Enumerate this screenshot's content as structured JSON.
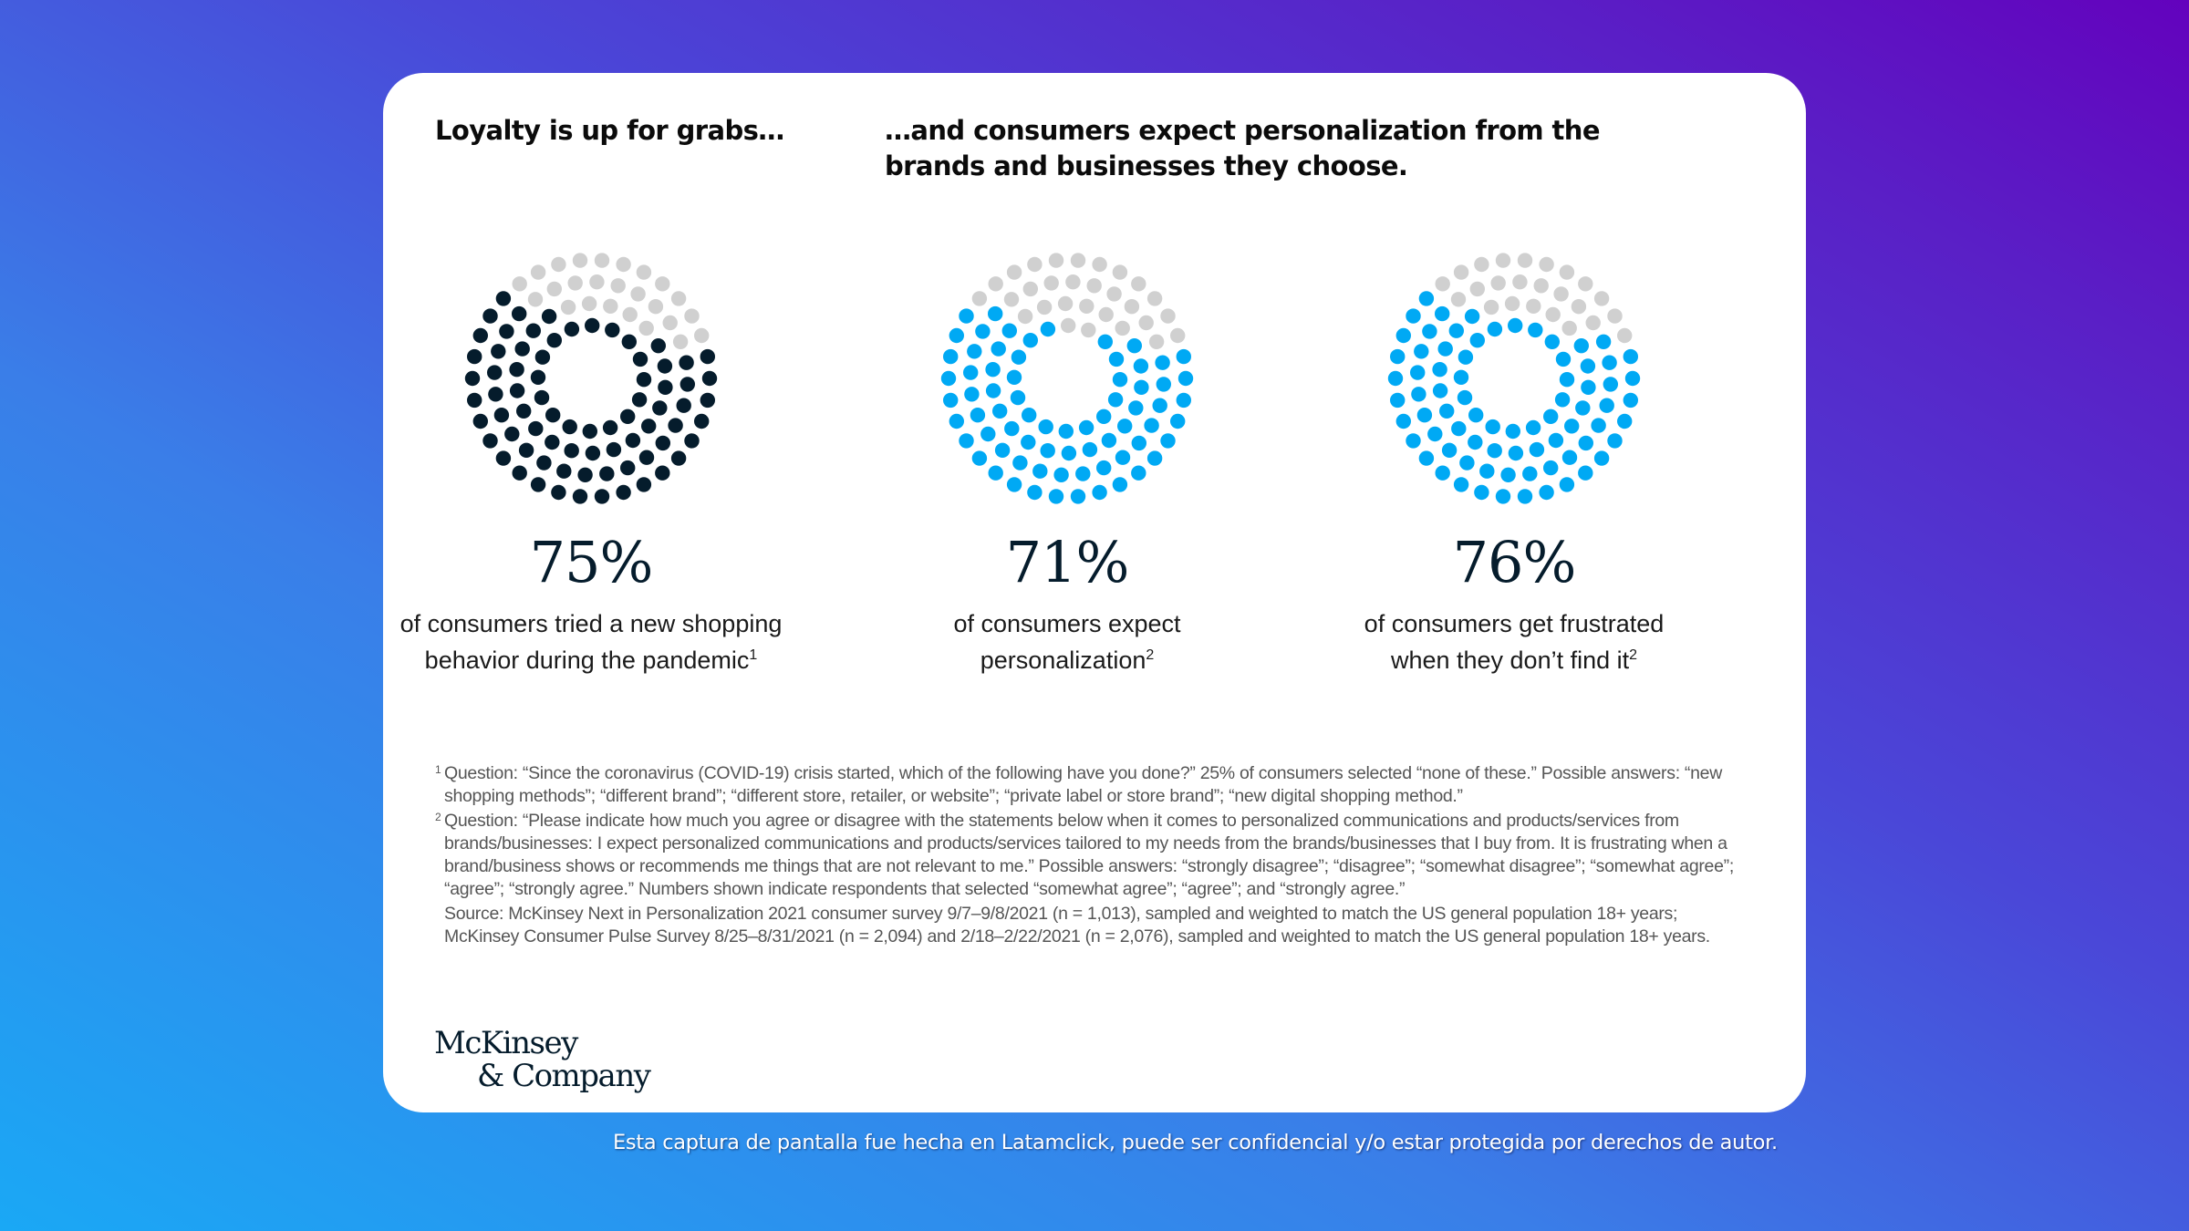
{
  "headline_left": "Loyalty is up for grabs…",
  "headline_right": "…and consumers expect personalization from the brands and businesses they choose.",
  "colors": {
    "background_start": "#1aa8f5",
    "background_end": "#6302bd",
    "dark_fill": "#051c2c",
    "blue_fill": "#00a9f4",
    "empty_dot": "#d0d0d0",
    "card": "#ffffff"
  },
  "chart_data": [
    {
      "type": "dot-proportion",
      "value": 75,
      "label": "75%",
      "description": "of consumers tried a new shopping behavior during the pandemic",
      "footnote_ref": "1",
      "fill_color": "#051c2c",
      "empty_color": "#d0d0d0"
    },
    {
      "type": "dot-proportion",
      "value": 71,
      "label": "71%",
      "description": "of consumers expect personalization",
      "footnote_ref": "2",
      "fill_color": "#00a9f4",
      "empty_color": "#d0d0d0"
    },
    {
      "type": "dot-proportion",
      "value": 76,
      "label": "76%",
      "description": "of consumers get frustrated when they don’t find it",
      "footnote_ref": "2",
      "fill_color": "#00a9f4",
      "empty_color": "#d0d0d0"
    }
  ],
  "footnotes": [
    {
      "mark": "1",
      "text": "Question: “Since the coronavirus (COVID-19) crisis started, which of the following have you done?” 25% of consumers selected “none of these.” Possible answers: “new shopping methods”; “different brand”; “different store, retailer, or website”; “private label or store brand”; “new digital shopping method.”"
    },
    {
      "mark": "2",
      "text": "Question: “Please indicate how much you agree or disagree with the statements below when it comes to personalized communications and products/services from brands/businesses: I expect personalized communications and products/services tailored to my needs from the brands/businesses that I buy from. It is frustrating when a brand/business shows or recommends me things that are not relevant to me.” Possible answers: “strongly disagree”; “disagree”; “somewhat disagree”; “somewhat agree”; “agree”; “strongly agree.” Numbers shown indicate respondents that selected “somewhat agree”; “agree”; and “strongly agree.”"
    }
  ],
  "source": "Source: McKinsey Next in Personalization 2021 consumer survey 9/7–9/8/2021 (n = 1,013), sampled and weighted to match the US general population 18+ years; McKinsey Consumer Pulse Survey 8/25–8/31/2021 (n = 2,094) and 2/18–2/22/2021 (n = 2,076), sampled and weighted to match the US general population 18+ years.",
  "logo": {
    "line1": "McKinsey",
    "line2": "& Company"
  },
  "watermark": "Esta captura de pantalla fue hecha en Latamclick, puede ser confidencial y/o estar protegida por derechos de autor."
}
